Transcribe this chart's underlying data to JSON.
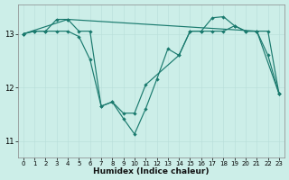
{
  "xlabel": "Humidex (Indice chaleur)",
  "bg_color": "#cceee8",
  "line_color": "#1a7a6e",
  "grid_color": "#b8ddd8",
  "ylim": [
    10.7,
    13.55
  ],
  "yticks": [
    11,
    12,
    13
  ],
  "xlim": [
    -0.5,
    23.5
  ],
  "xticks": [
    0,
    1,
    2,
    3,
    4,
    5,
    6,
    7,
    8,
    9,
    10,
    11,
    12,
    13,
    14,
    15,
    16,
    17,
    18,
    19,
    20,
    21,
    22,
    23
  ],
  "line1_x": [
    0,
    1,
    2,
    3,
    4,
    5,
    6,
    7,
    8,
    9,
    10,
    11,
    12,
    13,
    14,
    15,
    16,
    17,
    18,
    19,
    20,
    21,
    22,
    23
  ],
  "line1_y": [
    13.0,
    13.05,
    13.05,
    13.27,
    13.27,
    13.05,
    13.05,
    11.65,
    11.73,
    11.42,
    11.13,
    11.6,
    12.15,
    12.72,
    12.6,
    13.05,
    13.05,
    13.3,
    13.32,
    13.15,
    13.05,
    13.05,
    12.6,
    11.88
  ],
  "line2_x": [
    0,
    1,
    2,
    3,
    4,
    5,
    6,
    7,
    8,
    9,
    10,
    11,
    14,
    15,
    16,
    17,
    18,
    19,
    20,
    21,
    22,
    23
  ],
  "line2_y": [
    13.0,
    13.05,
    13.05,
    13.05,
    13.05,
    12.95,
    12.52,
    11.65,
    11.73,
    11.52,
    11.52,
    12.05,
    12.6,
    13.05,
    13.05,
    13.05,
    13.05,
    13.15,
    13.05,
    13.05,
    13.05,
    11.88
  ],
  "line3_x": [
    0,
    4,
    21,
    23
  ],
  "line3_y": [
    13.0,
    13.27,
    13.05,
    11.88
  ]
}
